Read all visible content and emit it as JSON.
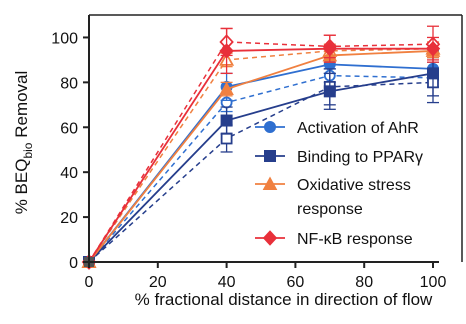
{
  "chart_data": {
    "type": "line",
    "title": "",
    "xlabel": "% fractional distance in direction of flow",
    "ylabel_parts": [
      "% BEQ",
      "bio",
      " Removal"
    ],
    "xlim": [
      0,
      100
    ],
    "ylim": [
      0,
      110
    ],
    "xticks": [
      "0",
      "20",
      "40",
      "60",
      "80",
      "100"
    ],
    "yticks": [
      "0",
      "20",
      "40",
      "60",
      "80",
      "100"
    ],
    "grid": false,
    "legend_position": "lower-right",
    "series": [
      {
        "name_lines": [
          "Activation of AhR"
        ],
        "color": "#2F6FD0",
        "marker": "circle",
        "solid": {
          "x": [
            0,
            40,
            70,
            100
          ],
          "y": [
            0,
            78,
            88,
            86
          ],
          "err": [
            0,
            6,
            4,
            5
          ]
        },
        "dashed": {
          "x": [
            0,
            40,
            70,
            100
          ],
          "y": [
            0,
            71,
            83,
            82
          ],
          "err": [
            0,
            4,
            3,
            4
          ]
        }
      },
      {
        "name_lines": [
          "Binding to PPARγ"
        ],
        "color": "#263E8C",
        "marker": "square",
        "solid": {
          "x": [
            0,
            40,
            70,
            100
          ],
          "y": [
            0,
            63,
            76,
            84
          ],
          "err": [
            0,
            6,
            8,
            10
          ]
        },
        "dashed": {
          "x": [
            0,
            40,
            70,
            100
          ],
          "y": [
            0,
            55,
            78,
            80
          ],
          "err": [
            0,
            6,
            8,
            9
          ]
        }
      },
      {
        "name_lines": [
          "Oxidative stress",
          "response"
        ],
        "color": "#F08040",
        "marker": "triangle",
        "solid": {
          "x": [
            0,
            40,
            70,
            100
          ],
          "y": [
            0,
            77,
            92,
            94
          ],
          "err": [
            0,
            3,
            3,
            3
          ]
        },
        "dashed": {
          "x": [
            0,
            40,
            70,
            100
          ],
          "y": [
            0,
            90,
            94,
            95
          ],
          "err": [
            0,
            3,
            3,
            3
          ]
        }
      },
      {
        "name_lines": [
          "NF-κB response"
        ],
        "color": "#E8303A",
        "marker": "diamond",
        "solid": {
          "x": [
            0,
            40,
            70,
            100
          ],
          "y": [
            0,
            94,
            95,
            95
          ],
          "err": [
            0,
            10,
            6,
            5
          ]
        },
        "dashed": {
          "x": [
            0,
            40,
            70,
            100
          ],
          "y": [
            0,
            98,
            96,
            97
          ],
          "err": [
            0,
            6,
            5,
            8
          ]
        }
      }
    ]
  }
}
